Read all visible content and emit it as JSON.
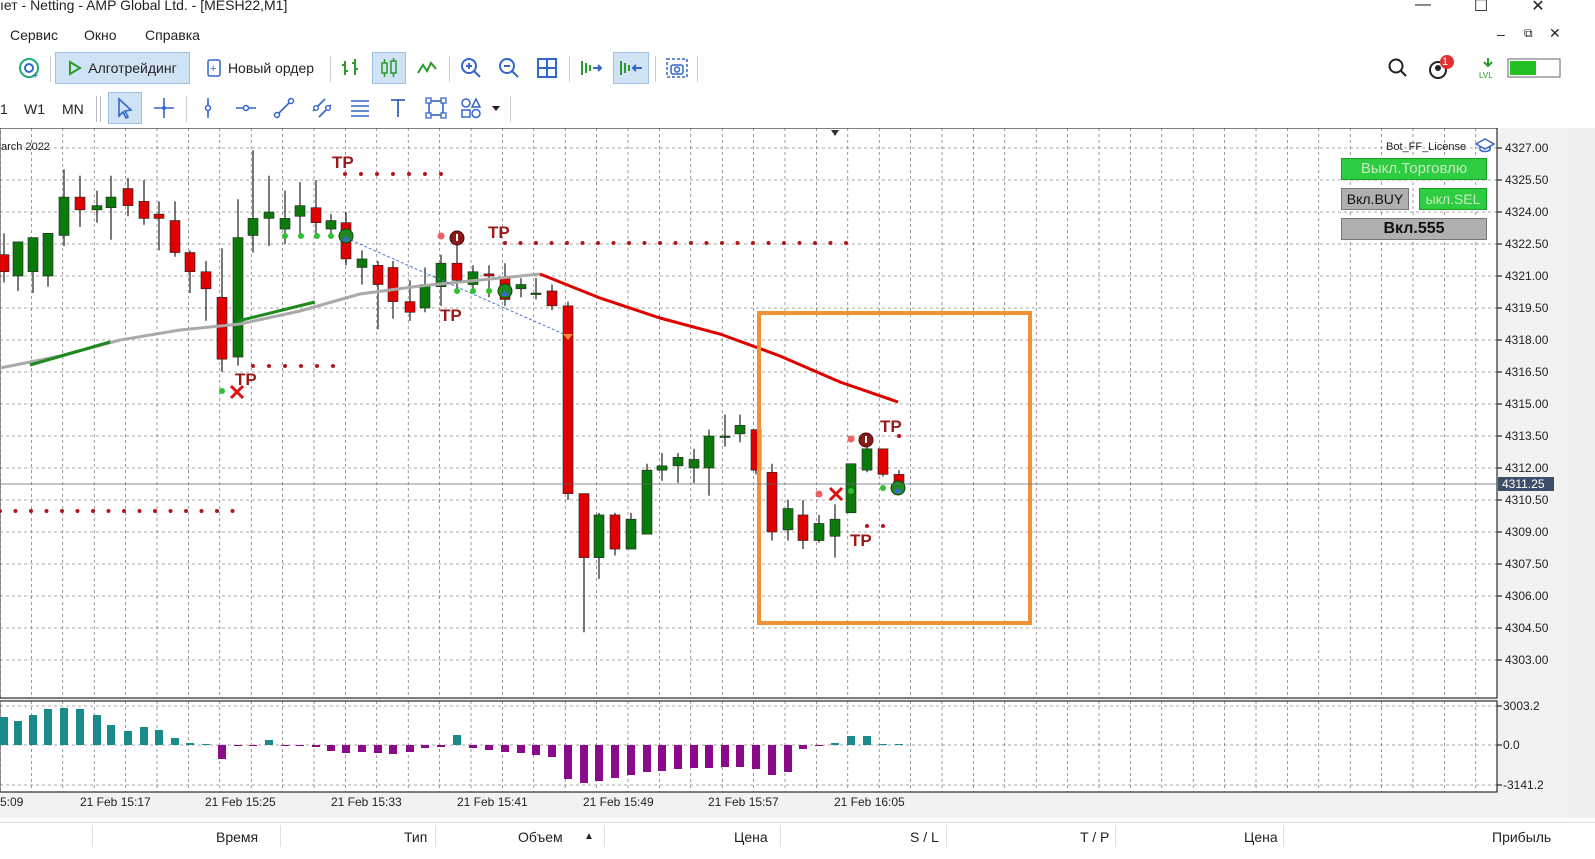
{
  "window": {
    "title": "ıет - Netting - AMP Global Ltd. - [MESH22,M1]",
    "minimize": "—",
    "maximize": "☐",
    "close": "✕"
  },
  "menu": {
    "items": [
      "Сервис",
      "Окно",
      "Справка"
    ]
  },
  "toolbar": {
    "algo_label": "Алготрейдинг",
    "new_order_label": "Новый ордер",
    "notification_count": "1",
    "timeframes": [
      "1",
      "W1",
      "MN"
    ]
  },
  "chart": {
    "date_label": "arch 2022",
    "license_label": "Bot_FF_License",
    "current_price": "4311.25",
    "price_ticks": [
      "4327.00",
      "4325.50",
      "4324.00",
      "4322.50",
      "4321.00",
      "4319.50",
      "4318.00",
      "4316.50",
      "4315.00",
      "4313.50",
      "4312.00",
      "4310.50",
      "4309.00",
      "4307.50",
      "4306.00",
      "4304.50",
      "4303.00"
    ],
    "osc_ticks": [
      "3003.2",
      "0.0",
      "-3141.2"
    ],
    "time_ticks": [
      "5:09",
      "21 Feb 15:17",
      "21 Feb 15:25",
      "21 Feb 15:33",
      "21 Feb 15:41",
      "21 Feb 15:49",
      "21 Feb 15:57",
      "21 Feb 16:05"
    ],
    "tp_label": "TP",
    "buttons": {
      "trading": "Выкл.Торговлю",
      "buy": "Вкл.BUY",
      "sell": "ыкл.SEL",
      "magic": "Вкл.555"
    },
    "colors": {
      "bull": "#0a7a0a",
      "bear": "#e00000",
      "ma": "#e00000",
      "highlight": "#f39235",
      "osc_pos": "#1a8a8a",
      "osc_neg": "#8a0a8a"
    }
  },
  "bottom_columns": [
    "Время",
    "Тип",
    "Объем",
    "Цена",
    "S / L",
    "T / P",
    "Цена",
    "Прибыль"
  ]
}
